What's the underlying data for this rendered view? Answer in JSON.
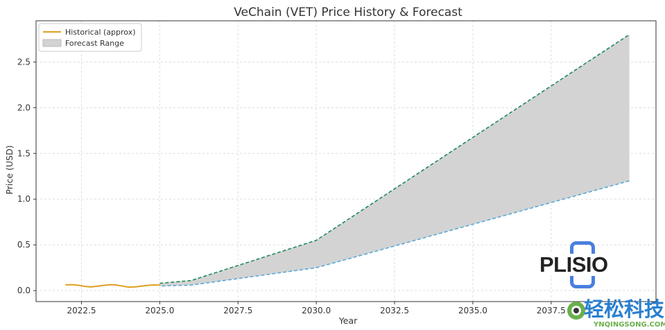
{
  "chart_data": {
    "type": "line",
    "title": "VeChain (VET) Price History & Forecast",
    "xlabel": "Year",
    "ylabel": "Price (USD)",
    "xlim": [
      2021.05,
      2040.85
    ],
    "ylim": [
      -0.12,
      2.95
    ],
    "xticks": [
      2022.5,
      2025.0,
      2027.5,
      2030.0,
      2032.5,
      2035.0,
      2037.5
    ],
    "xtick_labels": [
      "2022.5",
      "2025.0",
      "2027.5",
      "2030.0",
      "2032.5",
      "2035.0",
      "2037.5"
    ],
    "yticks": [
      0.0,
      0.5,
      1.0,
      1.5,
      2.0,
      2.5
    ],
    "ytick_labels": [
      "0.0",
      "0.5",
      "1.0",
      "1.5",
      "2.0",
      "2.5"
    ],
    "grid": true,
    "legend_position": "top-left",
    "series": [
      {
        "name": "Historical (approx)",
        "color": "#e0a020",
        "x": [
          2022.0,
          2022.2,
          2022.4,
          2022.6,
          2022.8,
          2023.0,
          2023.2,
          2023.4,
          2023.6,
          2023.8,
          2024.0,
          2024.2,
          2024.4,
          2024.6,
          2024.8,
          2025.0
        ],
        "y": [
          0.063,
          0.065,
          0.058,
          0.047,
          0.04,
          0.048,
          0.057,
          0.064,
          0.062,
          0.05,
          0.038,
          0.04,
          0.048,
          0.056,
          0.062,
          0.06
        ]
      }
    ],
    "forecast": {
      "name": "Forecast Range",
      "fill_color": "#d3d3d3",
      "x": [
        2025,
        2026,
        2030,
        2040
      ],
      "upper": [
        0.08,
        0.11,
        0.55,
        2.8
      ],
      "lower": [
        0.05,
        0.06,
        0.25,
        1.2
      ],
      "upper_color": "#1f8a5a",
      "lower_color": "#5aa8d8"
    }
  },
  "watermarks": {
    "plisio": "PLISIO",
    "site_cn": "轻松科技",
    "site_url": "YNQINGSONG.COM"
  }
}
